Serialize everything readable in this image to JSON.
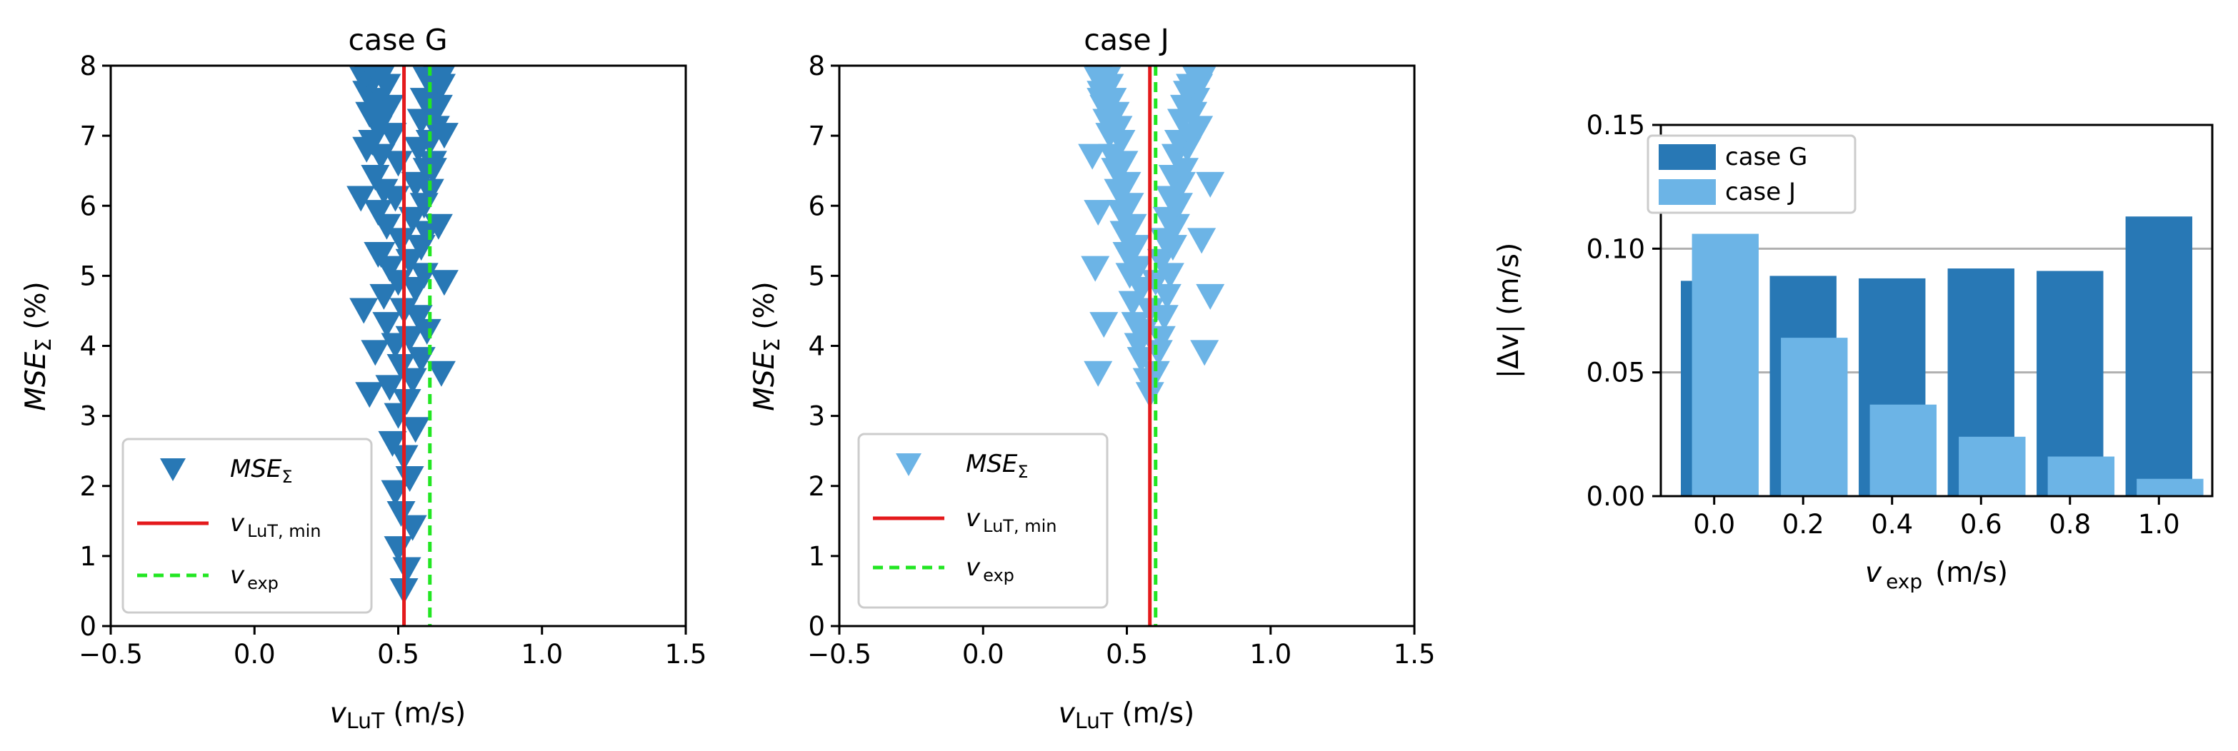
{
  "chart_data": [
    {
      "type": "scatter",
      "title": "case G",
      "xlabel_main": "v",
      "xlabel_sub": "LuT",
      "xlabel_unit": "(m/s)",
      "ylabel_main": "MSE",
      "ylabel_sub": "Σ",
      "ylabel_unit": "(%)",
      "xlim": [
        -0.5,
        1.5
      ],
      "ylim": [
        0,
        8
      ],
      "xticks": [
        -0.5,
        0.0,
        0.5,
        1.0,
        1.5
      ],
      "xtick_labels": [
        "−0.5",
        "0.0",
        "0.5",
        "1.0",
        "1.5"
      ],
      "yticks": [
        0,
        1,
        2,
        3,
        4,
        5,
        6,
        7,
        8
      ],
      "ytick_labels": [
        "0",
        "1",
        "2",
        "3",
        "4",
        "5",
        "6",
        "7",
        "8"
      ],
      "marker_color": "#2878b5",
      "v_lut_min": 0.52,
      "v_exp": 0.61,
      "scatter": {
        "x": [
          0.52,
          0.53,
          0.5,
          0.55,
          0.51,
          0.49,
          0.54,
          0.52,
          0.48,
          0.56,
          0.5,
          0.53,
          0.47,
          0.55,
          0.51,
          0.58,
          0.49,
          0.54,
          0.46,
          0.57,
          0.52,
          0.45,
          0.56,
          0.5,
          0.59,
          0.47,
          0.54,
          0.44,
          0.58,
          0.51,
          0.6,
          0.46,
          0.55,
          0.43,
          0.59,
          0.49,
          0.61,
          0.45,
          0.56,
          0.42,
          0.6,
          0.5,
          0.62,
          0.44,
          0.57,
          0.41,
          0.61,
          0.48,
          0.63,
          0.43,
          0.58,
          0.4,
          0.62,
          0.47,
          0.64,
          0.42,
          0.59,
          0.39,
          0.63,
          0.46,
          0.65,
          0.41,
          0.6,
          0.38,
          0.64,
          0.45,
          0.66,
          0.4,
          0.61,
          0.37,
          0.65,
          0.44,
          0.66,
          0.39,
          0.62,
          0.37,
          0.64,
          0.43,
          0.66,
          0.38,
          0.6,
          0.42,
          0.65,
          0.4
        ],
        "y": [
          0.5,
          0.8,
          1.1,
          1.4,
          1.6,
          1.9,
          2.1,
          2.4,
          2.6,
          2.8,
          3.0,
          3.2,
          3.4,
          3.5,
          3.7,
          3.8,
          4.0,
          4.1,
          4.3,
          4.4,
          4.5,
          4.7,
          4.8,
          4.9,
          5.0,
          5.1,
          5.2,
          5.3,
          5.4,
          5.5,
          5.6,
          5.7,
          5.8,
          5.9,
          6.0,
          6.1,
          6.2,
          6.2,
          6.3,
          6.4,
          6.5,
          6.6,
          6.6,
          6.7,
          6.8,
          6.9,
          6.9,
          7.0,
          7.1,
          7.1,
          7.2,
          7.3,
          7.3,
          7.4,
          7.4,
          7.5,
          7.5,
          7.6,
          7.6,
          7.7,
          7.7,
          7.8,
          7.8,
          7.8,
          7.9,
          7.9,
          7.9,
          8.0,
          8.0,
          8.0,
          7.7,
          7.3,
          7.0,
          6.8,
          6.5,
          6.1,
          5.7,
          5.3,
          4.9,
          4.5,
          4.2,
          3.9,
          3.6,
          3.3
        ]
      },
      "legend": {
        "position": "lower-left",
        "scatter_label": "MSE",
        "scatter_sub": "Σ",
        "line_main": "v",
        "lut_sub": "LuT, min",
        "exp_sub": "exp"
      }
    },
    {
      "type": "scatter",
      "title": "case J",
      "xlabel_main": "v",
      "xlabel_sub": "LuT",
      "xlabel_unit": "(m/s)",
      "ylabel_main": "MSE",
      "ylabel_sub": "Σ",
      "ylabel_unit": "(%)",
      "xlim": [
        -0.5,
        1.5
      ],
      "ylim": [
        0,
        8
      ],
      "xticks": [
        -0.5,
        0.0,
        0.5,
        1.0,
        1.5
      ],
      "xtick_labels": [
        "−0.5",
        "0.0",
        "0.5",
        "1.0",
        "1.5"
      ],
      "yticks": [
        0,
        1,
        2,
        3,
        4,
        5,
        6,
        7,
        8
      ],
      "ytick_labels": [
        "0",
        "1",
        "2",
        "3",
        "4",
        "5",
        "6",
        "7",
        "8"
      ],
      "marker_color": "#6cb4e6",
      "v_lut_min": 0.58,
      "v_exp": 0.6,
      "scatter": {
        "x": [
          0.58,
          0.57,
          0.6,
          0.55,
          0.61,
          0.54,
          0.62,
          0.56,
          0.53,
          0.63,
          0.58,
          0.52,
          0.64,
          0.55,
          0.6,
          0.51,
          0.65,
          0.54,
          0.62,
          0.5,
          0.66,
          0.53,
          0.63,
          0.49,
          0.67,
          0.52,
          0.64,
          0.48,
          0.68,
          0.51,
          0.65,
          0.47,
          0.69,
          0.5,
          0.66,
          0.46,
          0.7,
          0.49,
          0.67,
          0.45,
          0.71,
          0.48,
          0.68,
          0.44,
          0.72,
          0.47,
          0.69,
          0.43,
          0.73,
          0.46,
          0.7,
          0.42,
          0.74,
          0.45,
          0.71,
          0.41,
          0.75,
          0.44,
          0.72,
          0.4,
          0.76,
          0.43,
          0.73,
          0.39,
          0.77,
          0.42,
          0.74,
          0.38,
          0.78,
          0.41,
          0.75,
          0.38,
          0.79,
          0.4,
          0.76,
          0.39,
          0.79,
          0.42,
          0.77,
          0.4
        ],
        "y": [
          3.3,
          3.5,
          3.6,
          3.8,
          3.9,
          4.0,
          4.1,
          4.2,
          4.3,
          4.4,
          4.5,
          4.6,
          4.7,
          4.8,
          4.9,
          5.0,
          5.0,
          5.1,
          5.2,
          5.3,
          5.4,
          5.4,
          5.5,
          5.6,
          5.7,
          5.7,
          5.8,
          5.9,
          6.0,
          6.0,
          6.1,
          6.2,
          6.3,
          6.3,
          6.4,
          6.5,
          6.5,
          6.6,
          6.7,
          6.7,
          6.8,
          6.9,
          6.9,
          7.0,
          7.0,
          7.1,
          7.2,
          7.2,
          7.3,
          7.3,
          7.4,
          7.4,
          7.5,
          7.5,
          7.6,
          7.6,
          7.7,
          7.7,
          7.7,
          7.8,
          7.8,
          7.8,
          7.9,
          7.9,
          7.9,
          8.0,
          8.0,
          8.0,
          8.0,
          7.5,
          7.1,
          6.7,
          6.3,
          5.9,
          5.5,
          5.1,
          4.7,
          4.3,
          3.9,
          3.6
        ]
      },
      "legend": {
        "position": "lower-left",
        "scatter_label": "MSE",
        "scatter_sub": "Σ",
        "line_main": "v",
        "lut_sub": "LuT, min",
        "exp_sub": "exp"
      }
    },
    {
      "type": "bar",
      "xlabel_main": "v",
      "xlabel_sub": "exp",
      "xlabel_unit": "(m/s)",
      "ylabel": "|Δv| (m/s)",
      "xlim": [
        -0.12,
        1.12
      ],
      "ylim": [
        0,
        0.15
      ],
      "categories": [
        "0.0",
        "0.2",
        "0.4",
        "0.6",
        "0.8",
        "1.0"
      ],
      "category_values": [
        0.0,
        0.2,
        0.4,
        0.6,
        0.8,
        1.0
      ],
      "yticks": [
        0.0,
        0.05,
        0.1,
        0.15
      ],
      "ytick_labels": [
        "0.00",
        "0.05",
        "0.10",
        "0.15"
      ],
      "gridlines": [
        0.05,
        0.1
      ],
      "series": [
        {
          "name": "case G",
          "color": "#2878b5",
          "offset": 0.0,
          "values": [
            0.087,
            0.089,
            0.088,
            0.092,
            0.091,
            0.113
          ]
        },
        {
          "name": "case J",
          "color": "#6cb4e6",
          "offset": 0.025,
          "values": [
            0.106,
            0.064,
            0.037,
            0.024,
            0.016,
            0.007
          ]
        }
      ],
      "legend": {
        "position": "top-left"
      }
    }
  ]
}
